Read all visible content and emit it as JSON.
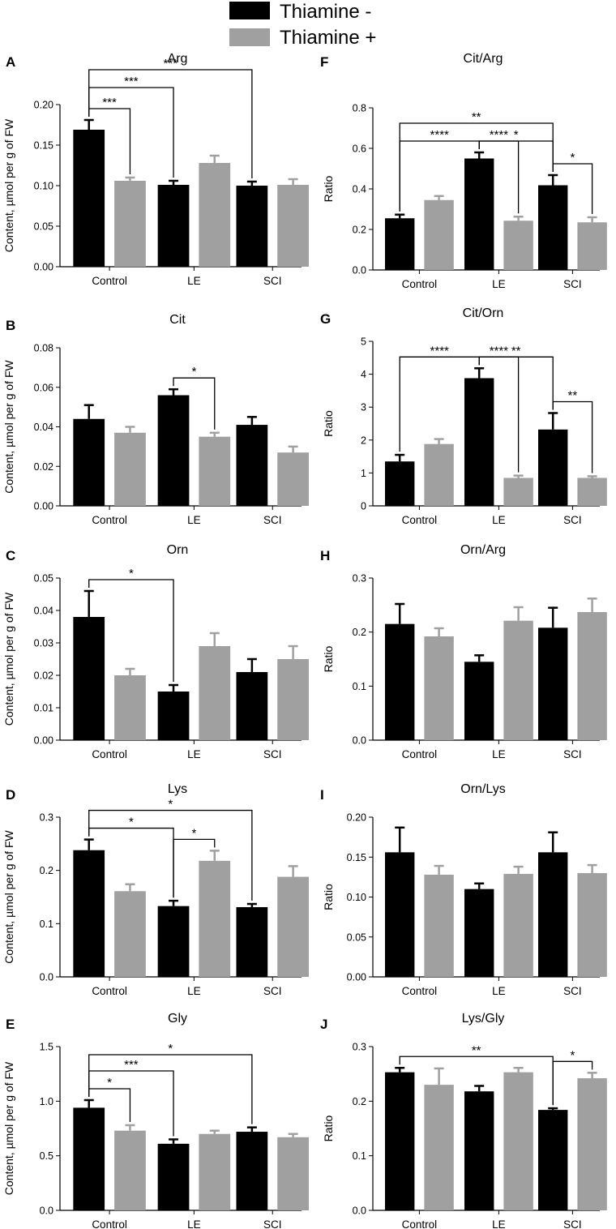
{
  "legend": [
    {
      "label": "Thiamine -",
      "color": "#000000"
    },
    {
      "label": "Thiamine +",
      "color": "#a0a0a0"
    }
  ],
  "chart_data": [
    {
      "type": "bar",
      "panel": "A",
      "title": "Arg",
      "ylabel": "Content, µmol per g of FW",
      "ylim": [
        0,
        0.2
      ],
      "yticks": [
        "0.00",
        "0.05",
        "0.10",
        "0.15",
        "0.20"
      ],
      "categories": [
        "Control",
        "LE",
        "SCI"
      ],
      "series": [
        {
          "name": "Thiamine -",
          "values": [
            0.169,
            0.101,
            0.1
          ],
          "errors": [
            0.012,
            0.005,
            0.005
          ]
        },
        {
          "name": "Thiamine +",
          "values": [
            0.106,
            0.128,
            0.101
          ],
          "errors": [
            0.004,
            0.009,
            0.007
          ]
        }
      ],
      "annotations": [
        {
          "from": [
            0,
            0
          ],
          "to": [
            0,
            1
          ],
          "label": "***"
        },
        {
          "from": [
            0,
            0
          ],
          "to": [
            1,
            0
          ],
          "label": "***"
        },
        {
          "from": [
            0,
            0
          ],
          "to": [
            2,
            0
          ],
          "label": "***"
        }
      ]
    },
    {
      "type": "bar",
      "panel": "B",
      "title": "Cit",
      "ylabel": "Content, µmol per g of FW",
      "ylim": [
        0,
        0.08
      ],
      "yticks": [
        "0.00",
        "0.02",
        "0.04",
        "0.06",
        "0.08"
      ],
      "categories": [
        "Control",
        "LE",
        "SCI"
      ],
      "series": [
        {
          "name": "Thiamine -",
          "values": [
            0.044,
            0.056,
            0.041
          ],
          "errors": [
            0.007,
            0.003,
            0.004
          ]
        },
        {
          "name": "Thiamine +",
          "values": [
            0.037,
            0.035,
            0.027
          ],
          "errors": [
            0.003,
            0.002,
            0.003
          ]
        }
      ],
      "annotations": [
        {
          "from": [
            1,
            0
          ],
          "to": [
            1,
            1
          ],
          "label": "*"
        }
      ]
    },
    {
      "type": "bar",
      "panel": "C",
      "title": "Orn",
      "ylabel": "Content, µmol per g of FW",
      "ylim": [
        0,
        0.05
      ],
      "yticks": [
        "0.00",
        "0.01",
        "0.02",
        "0.03",
        "0.04",
        "0.05"
      ],
      "categories": [
        "Control",
        "LE",
        "SCI"
      ],
      "series": [
        {
          "name": "Thiamine -",
          "values": [
            0.038,
            0.015,
            0.021
          ],
          "errors": [
            0.008,
            0.002,
            0.004
          ]
        },
        {
          "name": "Thiamine +",
          "values": [
            0.02,
            0.029,
            0.025
          ],
          "errors": [
            0.002,
            0.004,
            0.004
          ]
        }
      ],
      "annotations": [
        {
          "from": [
            0,
            0
          ],
          "to": [
            1,
            0
          ],
          "label": "*"
        }
      ]
    },
    {
      "type": "bar",
      "panel": "D",
      "title": "Lys",
      "ylabel": "Content, µmol per g of FW",
      "ylim": [
        0,
        0.3
      ],
      "yticks": [
        "0.0",
        "0.1",
        "0.2",
        "0.3"
      ],
      "categories": [
        "Control",
        "LE",
        "SCI"
      ],
      "series": [
        {
          "name": "Thiamine -",
          "values": [
            0.238,
            0.133,
            0.131
          ],
          "errors": [
            0.02,
            0.01,
            0.006
          ]
        },
        {
          "name": "Thiamine +",
          "values": [
            0.161,
            0.218,
            0.188
          ],
          "errors": [
            0.013,
            0.019,
            0.02
          ]
        }
      ],
      "annotations": [
        {
          "from": [
            0,
            0
          ],
          "to": [
            1,
            0
          ],
          "label": "*"
        },
        {
          "from": [
            1,
            0
          ],
          "to": [
            1,
            1
          ],
          "label": "*"
        },
        {
          "from": [
            0,
            0
          ],
          "to": [
            2,
            0
          ],
          "label": "*"
        }
      ]
    },
    {
      "type": "bar",
      "panel": "E",
      "title": "Gly",
      "ylabel": "Content, µmol per g of FW",
      "ylim": [
        0,
        1.5
      ],
      "yticks": [
        "0.0",
        "0.5",
        "1.0",
        "1.5"
      ],
      "categories": [
        "Control",
        "LE",
        "SCI"
      ],
      "series": [
        {
          "name": "Thiamine -",
          "values": [
            0.94,
            0.61,
            0.72
          ],
          "errors": [
            0.07,
            0.04,
            0.04
          ]
        },
        {
          "name": "Thiamine +",
          "values": [
            0.73,
            0.7,
            0.67
          ],
          "errors": [
            0.05,
            0.03,
            0.03
          ]
        }
      ],
      "annotations": [
        {
          "from": [
            0,
            0
          ],
          "to": [
            0,
            1
          ],
          "label": "*"
        },
        {
          "from": [
            0,
            0
          ],
          "to": [
            1,
            0
          ],
          "label": "***"
        },
        {
          "from": [
            0,
            0
          ],
          "to": [
            2,
            0
          ],
          "label": "*"
        }
      ]
    },
    {
      "type": "bar",
      "panel": "F",
      "title": "Cit/Arg",
      "ylabel": "Ratio",
      "ylim": [
        0,
        0.8
      ],
      "yticks": [
        "0.0",
        "0.2",
        "0.4",
        "0.6",
        "0.8"
      ],
      "categories": [
        "Control",
        "LE",
        "SCI"
      ],
      "series": [
        {
          "name": "Thiamine -",
          "values": [
            0.255,
            0.55,
            0.418
          ],
          "errors": [
            0.018,
            0.03,
            0.05
          ]
        },
        {
          "name": "Thiamine +",
          "values": [
            0.345,
            0.243,
            0.235
          ],
          "errors": [
            0.02,
            0.02,
            0.025
          ]
        }
      ],
      "annotations": [
        {
          "from": [
            0,
            0
          ],
          "to": [
            1,
            0
          ],
          "label": "****"
        },
        {
          "from": [
            1,
            0
          ],
          "to": [
            1,
            1
          ],
          "label": "****"
        },
        {
          "from": [
            1,
            0
          ],
          "to": [
            2,
            0
          ],
          "label": "*"
        },
        {
          "from": [
            0,
            0
          ],
          "to": [
            2,
            0
          ],
          "label": "**"
        },
        {
          "from": [
            2,
            0
          ],
          "to": [
            2,
            1
          ],
          "label": "*"
        }
      ]
    },
    {
      "type": "bar",
      "panel": "G",
      "title": "Cit/Orn",
      "ylabel": "Ratio",
      "ylim": [
        0,
        5
      ],
      "yticks": [
        "0",
        "1",
        "2",
        "3",
        "4",
        "5"
      ],
      "categories": [
        "Control",
        "LE",
        "SCI"
      ],
      "series": [
        {
          "name": "Thiamine -",
          "values": [
            1.35,
            3.88,
            2.32
          ],
          "errors": [
            0.2,
            0.3,
            0.5
          ]
        },
        {
          "name": "Thiamine +",
          "values": [
            1.88,
            0.85,
            0.85
          ],
          "errors": [
            0.15,
            0.07,
            0.05
          ]
        }
      ],
      "annotations": [
        {
          "from": [
            0,
            0
          ],
          "to": [
            1,
            0
          ],
          "label": "****"
        },
        {
          "from": [
            1,
            0
          ],
          "to": [
            1,
            1
          ],
          "label": "****"
        },
        {
          "from": [
            1,
            0
          ],
          "to": [
            2,
            0
          ],
          "label": "**"
        },
        {
          "from": [
            2,
            0
          ],
          "to": [
            2,
            1
          ],
          "label": "**"
        }
      ]
    },
    {
      "type": "bar",
      "panel": "H",
      "title": "Orn/Arg",
      "ylabel": "Ratio",
      "ylim": [
        0,
        0.3
      ],
      "yticks": [
        "0.0",
        "0.1",
        "0.2",
        "0.3"
      ],
      "categories": [
        "Control",
        "LE",
        "SCI"
      ],
      "series": [
        {
          "name": "Thiamine -",
          "values": [
            0.215,
            0.145,
            0.208
          ],
          "errors": [
            0.037,
            0.012,
            0.037
          ]
        },
        {
          "name": "Thiamine +",
          "values": [
            0.192,
            0.221,
            0.237
          ],
          "errors": [
            0.015,
            0.025,
            0.025
          ]
        }
      ],
      "annotations": []
    },
    {
      "type": "bar",
      "panel": "I",
      "title": "Orn/Lys",
      "ylabel": "Ratio",
      "ylim": [
        0,
        0.2
      ],
      "yticks": [
        "0.00",
        "0.05",
        "0.10",
        "0.15",
        "0.20"
      ],
      "categories": [
        "Control",
        "LE",
        "SCI"
      ],
      "series": [
        {
          "name": "Thiamine -",
          "values": [
            0.156,
            0.11,
            0.156
          ],
          "errors": [
            0.031,
            0.007,
            0.025
          ]
        },
        {
          "name": "Thiamine +",
          "values": [
            0.128,
            0.129,
            0.13
          ],
          "errors": [
            0.011,
            0.009,
            0.01
          ]
        }
      ],
      "annotations": []
    },
    {
      "type": "bar",
      "panel": "J",
      "title": "Lys/Gly",
      "ylabel": "Ratio",
      "ylim": [
        0,
        0.3
      ],
      "yticks": [
        "0.0",
        "0.1",
        "0.2",
        "0.3"
      ],
      "categories": [
        "Control",
        "LE",
        "SCI"
      ],
      "series": [
        {
          "name": "Thiamine -",
          "values": [
            0.253,
            0.218,
            0.184
          ],
          "errors": [
            0.008,
            0.01,
            0.003
          ]
        },
        {
          "name": "Thiamine +",
          "values": [
            0.23,
            0.253,
            0.242
          ],
          "errors": [
            0.03,
            0.008,
            0.01
          ]
        }
      ],
      "annotations": [
        {
          "from": [
            0,
            0
          ],
          "to": [
            2,
            0
          ],
          "label": "**"
        },
        {
          "from": [
            2,
            0
          ],
          "to": [
            2,
            1
          ],
          "label": "*"
        }
      ]
    }
  ]
}
